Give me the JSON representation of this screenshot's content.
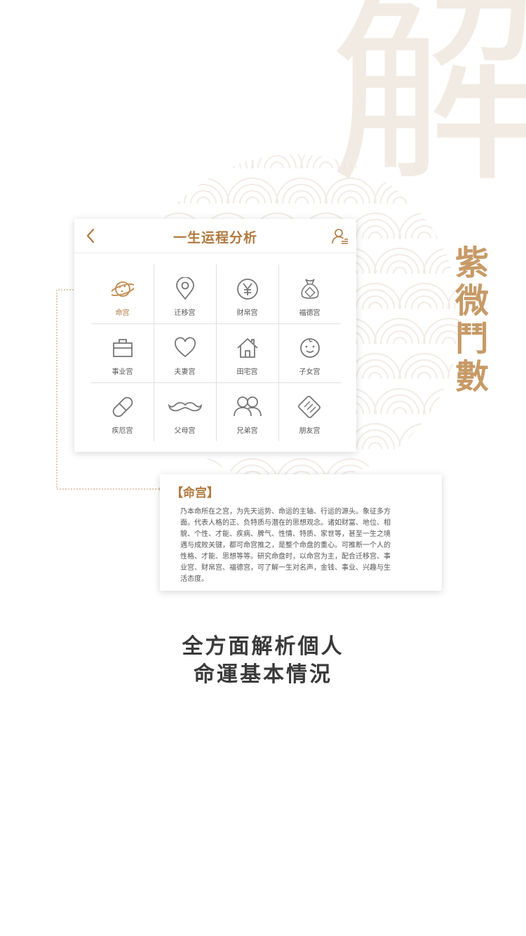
{
  "card": {
    "title": "一生运程分析"
  },
  "grid": [
    {
      "label": "命宫",
      "icon": "planet-icon",
      "active": true
    },
    {
      "label": "迁移宫",
      "icon": "location-pin-icon"
    },
    {
      "label": "财帛宫",
      "icon": "yen-coin-icon"
    },
    {
      "label": "福德宫",
      "icon": "money-bag-icon"
    },
    {
      "label": "事业宫",
      "icon": "briefcase-icon"
    },
    {
      "label": "夫妻宫",
      "icon": "heart-icon"
    },
    {
      "label": "田宅宫",
      "icon": "house-icon"
    },
    {
      "label": "子女宫",
      "icon": "baby-face-icon"
    },
    {
      "label": "疾厄宫",
      "icon": "pill-icon"
    },
    {
      "label": "父母宫",
      "icon": "mustache-icon"
    },
    {
      "label": "兄弟宫",
      "icon": "two-people-icon"
    },
    {
      "label": "朋友宫",
      "icon": "handshake-icon"
    }
  ],
  "description": {
    "title": "【命宫】",
    "lines": [
      "乃本命所在之宫，为先天运势、命运的主轴、行运的源头。象征多方",
      "面。代表人格的正、负特质与潜在的思想观念。诸如财富、地位、相",
      "貌、个性、才能、疾病、脾气、性情、特质、家世等，甚至一生之境",
      "遇与成败关键，都可命宫推之，是整个命盘的重心。可推断一个人的",
      "性格、才能、思想等等。研究命盘时，以命宫为主，配合迁移宫、事",
      "业宫、财帛宫、福德宫，可了解一生对名声，金钱、事业、兴趣与生",
      "活态度。"
    ]
  },
  "side_title": [
    "紫",
    "微",
    "鬥",
    "數"
  ],
  "watermark_char": "解",
  "slogan": [
    "全方面解析個人",
    "命運基本情況"
  ],
  "colors": {
    "accent": "#b07a3e",
    "gold": "#c79a67",
    "icon_gray": "#777777"
  }
}
